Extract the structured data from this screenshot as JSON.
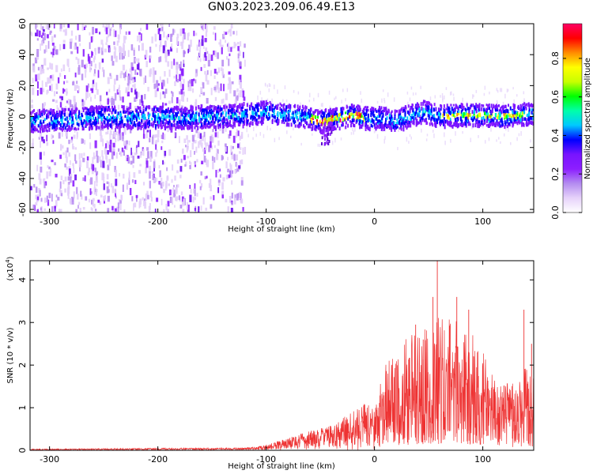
{
  "title": "GN03.2023.209.06.49.E13",
  "chart_data": [
    {
      "type": "heatmap",
      "xlabel": "Height of straight line (km)",
      "ylabel": "Frequency (Hz)",
      "xlim": [
        -318,
        147
      ],
      "ylim": [
        -62,
        60
      ],
      "xticks": [
        -300,
        -200,
        -100,
        0,
        100
      ],
      "yticks": [
        60,
        40,
        20,
        0,
        -20,
        -40,
        -60
      ],
      "colorbar": {
        "label": "Normalized spectral amplitude",
        "range": [
          0,
          0.98
        ],
        "ticks": [
          0.0,
          0.2,
          0.4,
          0.6,
          0.8
        ],
        "colormap": [
          "#ffffff",
          "#e6d2fa",
          "#b48cf0",
          "#8c1eff",
          "#7814ff",
          "#0000ff",
          "#00c8ff",
          "#00ffaa",
          "#00ff00",
          "#c8ff00",
          "#ffff00",
          "#ff8c00",
          "#ff0000",
          "#ff0064"
        ]
      },
      "ridge": {
        "x": [
          -318,
          -280,
          -250,
          -220,
          -200,
          -180,
          -150,
          -120,
          -100,
          -80,
          -60,
          -50,
          -40,
          -30,
          -20,
          -10,
          0,
          10,
          20,
          30,
          45,
          60,
          80,
          100,
          120,
          147
        ],
        "frequency": [
          -3,
          -2,
          0,
          -1,
          0,
          -1,
          0,
          1,
          3,
          1,
          -1,
          -3,
          -2,
          0,
          1,
          -1,
          -1,
          -1,
          -3,
          0,
          3,
          0,
          1,
          1,
          0,
          2
        ]
      },
      "noise_region_x": [
        -318,
        -120
      ],
      "dip": {
        "x": -45,
        "frequency": -18
      }
    },
    {
      "type": "line",
      "xlabel": "Height of straight line (km)",
      "ylabel": "SNR (10 * v/v)",
      "multiplier_label": "(x10",
      "multiplier_exp": "4",
      "xlim": [
        -318,
        147
      ],
      "ylim": [
        0,
        4.45
      ],
      "xticks": [
        -300,
        -200,
        -100,
        0,
        100
      ],
      "yticks": [
        0,
        1,
        2,
        3,
        4
      ],
      "color": "#ee3333",
      "envelope": {
        "x": [
          -318,
          -200,
          -120,
          -100,
          -80,
          -60,
          -40,
          -30,
          -20,
          -10,
          0,
          10,
          20,
          30,
          40,
          50,
          60,
          70,
          80,
          90,
          100,
          110,
          120,
          130,
          140,
          147
        ],
        "y": [
          0.03,
          0.05,
          0.06,
          0.12,
          0.3,
          0.45,
          0.6,
          0.75,
          0.9,
          1.1,
          1.0,
          1.9,
          2.3,
          2.6,
          2.6,
          2.9,
          3.0,
          3.0,
          2.8,
          2.6,
          2.3,
          1.6,
          1.5,
          1.5,
          2.1,
          1.8
        ]
      },
      "peaks": [
        {
          "x": 58,
          "y": 4.45
        },
        {
          "x": 54,
          "y": 3.6
        },
        {
          "x": 76,
          "y": 3.6
        },
        {
          "x": 38,
          "y": 2.95
        },
        {
          "x": 87,
          "y": 3.3
        },
        {
          "x": 138,
          "y": 3.3
        },
        {
          "x": 45,
          "y": 2.6
        },
        {
          "x": 145,
          "y": 2.5
        }
      ]
    }
  ]
}
